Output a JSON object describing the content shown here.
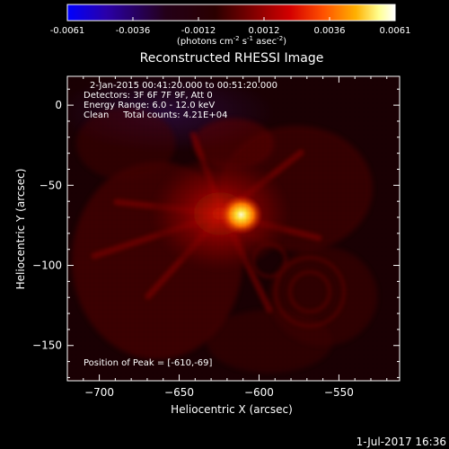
{
  "colorbar": {
    "tick_labels": [
      "-0.0061",
      "-0.0036",
      "-0.0012",
      "0.0012",
      "0.0036",
      "0.0061"
    ],
    "units_prefix": "(photons cm",
    "units_exp1": "-2",
    "units_mid": " s",
    "units_exp2": "-1",
    "units_mid2": " asec",
    "units_exp3": "-2",
    "units_suffix": ")",
    "colors": [
      "#0000ff",
      "#2a00a8",
      "#1a0010",
      "#3a0000",
      "#8a0000",
      "#d40000",
      "#ff5a00",
      "#ffb000",
      "#ffff80",
      "#ffffff"
    ]
  },
  "image": {
    "title": "Reconstructed RHESSI Image",
    "info_lines": [
      "2-Jan-2015 00:41:20.000 to 00:51:20.000",
      "Detectors: 3F 6F 7F 9F, Att 0",
      "Energy Range: 6.0 - 12.0 keV",
      "Clean     Total counts: 4.21E+04"
    ],
    "peak_text": "Position of Peak = [-610,-69]",
    "peak_position": [
      -610,
      -69
    ],
    "xlabel": "Heliocentric X (arcsec)",
    "ylabel": "Heliocentric Y (arcsec)",
    "xlim": [
      -720,
      -512
    ],
    "ylim": [
      -172,
      18
    ],
    "x_ticks": [
      {
        "value": -700,
        "label": "−700"
      },
      {
        "value": -650,
        "label": "−650"
      },
      {
        "value": -600,
        "label": "−600"
      },
      {
        "value": -550,
        "label": "−550"
      }
    ],
    "y_ticks": [
      {
        "value": 0,
        "label": "0"
      },
      {
        "value": -50,
        "label": "−50"
      },
      {
        "value": -100,
        "label": "−100"
      },
      {
        "value": -150,
        "label": "−150"
      }
    ],
    "colors": {
      "background": "#000000",
      "axis": "#ffffff",
      "source_core": "#ffffaa",
      "source_mid": "#ffaa00",
      "source_outer": "#c81000",
      "dim": "#3a0005"
    }
  },
  "timestamp": "1-Jul-2017 16:36"
}
